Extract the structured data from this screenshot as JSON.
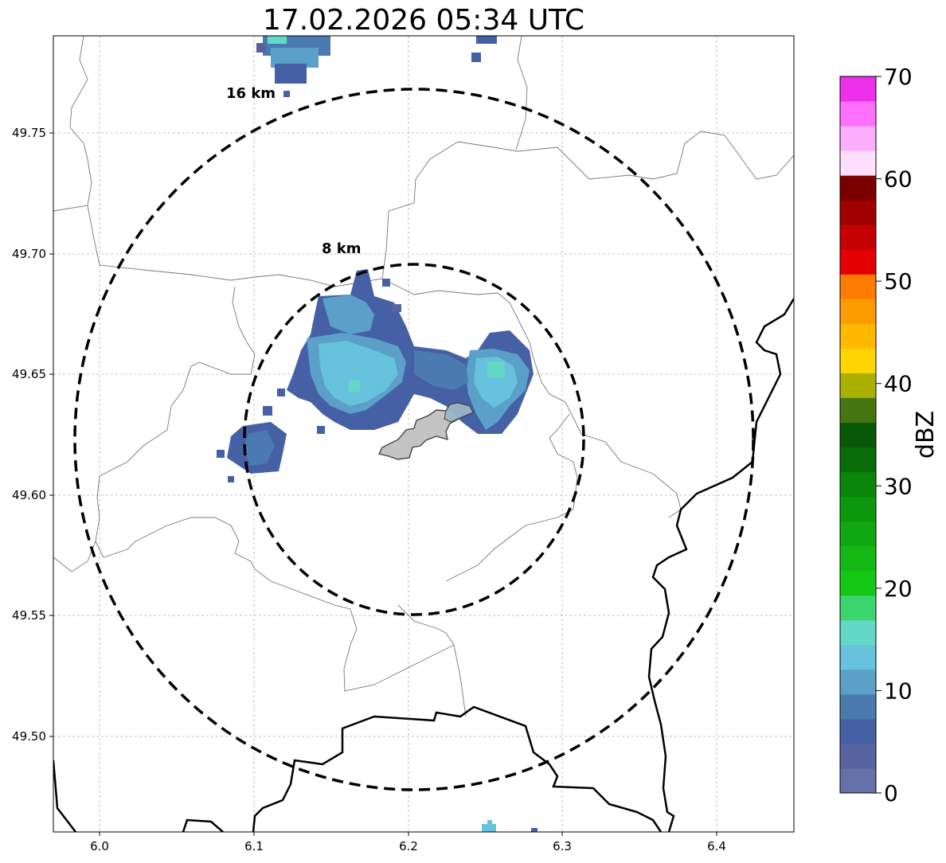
{
  "title": "17.02.2026 05:34 UTC",
  "map": {
    "x_ticks": [
      "6.0",
      "6.1",
      "6.2",
      "6.3",
      "6.4"
    ],
    "y_ticks": [
      "49.75",
      "49.70",
      "49.65",
      "49.60",
      "49.55",
      "49.50"
    ],
    "rings": [
      {
        "label": "8 km",
        "radius_km": 8
      },
      {
        "label": "16 km",
        "radius_km": 16
      }
    ],
    "grid": true
  },
  "colorbar": {
    "label": "dBZ",
    "ticks": [
      "0",
      "10",
      "20",
      "30",
      "40",
      "50",
      "60",
      "70"
    ],
    "colors": [
      "#6670a8",
      "#5763a0",
      "#4560a5",
      "#4a7ab0",
      "#5aa0c8",
      "#66c2dd",
      "#64d8c8",
      "#3cd46e",
      "#14c814",
      "#14b814",
      "#10a810",
      "#0c980c",
      "#0a860a",
      "#086c08",
      "#085808",
      "#457510",
      "#aab000",
      "#fed500",
      "#feb900",
      "#fe9b00",
      "#fe7d00",
      "#e40000",
      "#c40000",
      "#a00000",
      "#7a0000",
      "#fee0fe",
      "#feaefe",
      "#fe6ffe",
      "#ec30ec"
    ]
  }
}
